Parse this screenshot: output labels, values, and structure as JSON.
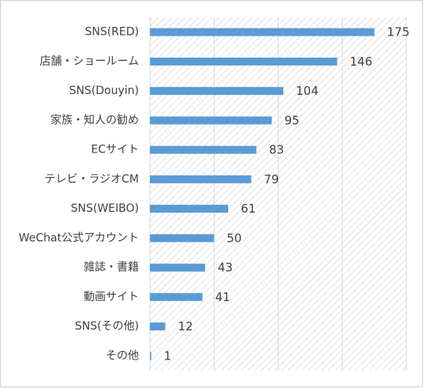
{
  "chart_data": {
    "type": "bar",
    "orientation": "horizontal",
    "title": "",
    "xlabel": "",
    "ylabel": "",
    "categories": [
      "SNS(RED)",
      "店舗・ショールーム",
      "SNS(Douyin)",
      "家族・知人の勧め",
      "ECサイト",
      "テレビ・ラジオCM",
      "SNS(WEIBO)",
      "WeChat公式アカウント",
      "雑誌・書籍",
      "動画サイト",
      "SNS(その他)",
      "その他"
    ],
    "values": [
      175,
      146,
      104,
      95,
      83,
      79,
      61,
      50,
      43,
      41,
      12,
      1
    ],
    "xlim": [
      0,
      200
    ],
    "grid": true,
    "legend": "none",
    "colors": {
      "bar": "#5b9bd5",
      "text": "#404040",
      "grid": "#d9d9d9",
      "hatch": "#c8c8c8"
    }
  }
}
